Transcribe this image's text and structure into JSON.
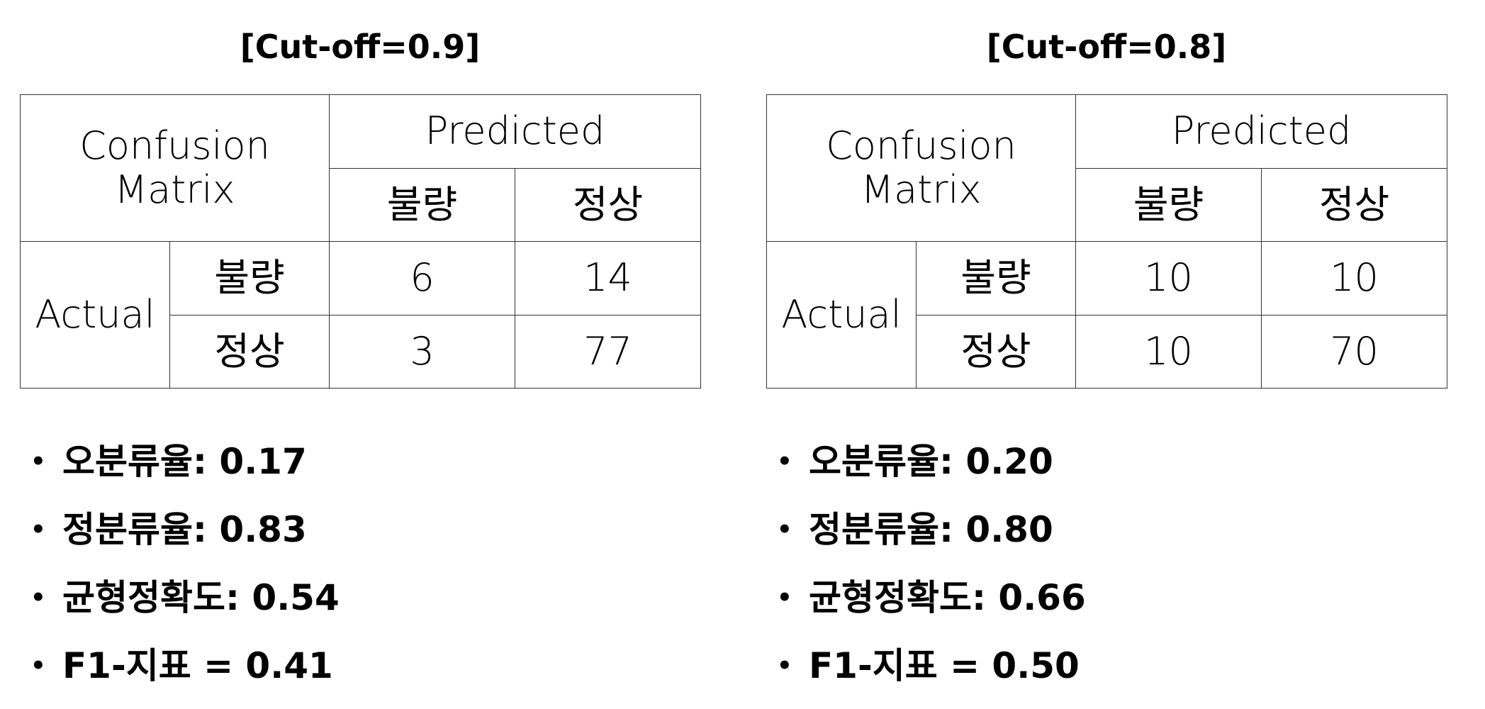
{
  "panels": [
    {
      "title": "[Cut-off=0.9]",
      "matrix": {
        "corner_label": "Confusion Matrix",
        "predicted_label": "Predicted",
        "actual_label": "Actual",
        "col_labels": [
          "불량",
          "정상"
        ],
        "row_labels": [
          "불량",
          "정상"
        ],
        "cells": [
          [
            "6",
            "14"
          ],
          [
            "3",
            "77"
          ]
        ]
      },
      "metrics": [
        {
          "label": "오분류율: 0.17"
        },
        {
          "label": "정분류율: 0.83"
        },
        {
          "label": "균형정확도: 0.54"
        },
        {
          "label": "F1-지표 = 0.41"
        }
      ]
    },
    {
      "title": "[Cut-off=0.8]",
      "matrix": {
        "corner_label": "Confusion Matrix",
        "predicted_label": "Predicted",
        "actual_label": "Actual",
        "col_labels": [
          "불량",
          "정상"
        ],
        "row_labels": [
          "불량",
          "정상"
        ],
        "cells": [
          [
            "10",
            "10"
          ],
          [
            "10",
            "70"
          ]
        ]
      },
      "metrics": [
        {
          "label": "오분류율: 0.20"
        },
        {
          "label": "정분류율: 0.80"
        },
        {
          "label": "균형정확도: 0.66"
        },
        {
          "label": "F1-지표 = 0.50"
        }
      ]
    }
  ],
  "bullet_glyph": "•"
}
